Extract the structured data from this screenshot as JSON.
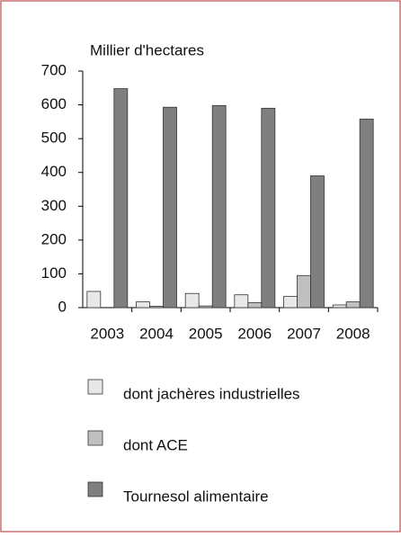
{
  "chart_data": {
    "type": "bar",
    "title": "Millier d'hectares",
    "categories": [
      "2003",
      "2004",
      "2005",
      "2006",
      "2007",
      "2008"
    ],
    "series": [
      {
        "name": "dont jachères industrielles",
        "color": "#e8e8e8",
        "values": [
          48,
          17,
          42,
          38,
          33,
          8
        ]
      },
      {
        "name": "dont ACE",
        "color": "#c0c0c0",
        "values": [
          0,
          4,
          5,
          15,
          95,
          17
        ]
      },
      {
        "name": "Tournesol alimentaire",
        "color": "#7f7f7f",
        "values": [
          648,
          593,
          598,
          590,
          390,
          558
        ]
      }
    ],
    "ylim": [
      0,
      700
    ],
    "yticks": [
      0,
      100,
      200,
      300,
      400,
      500,
      600,
      700
    ]
  }
}
